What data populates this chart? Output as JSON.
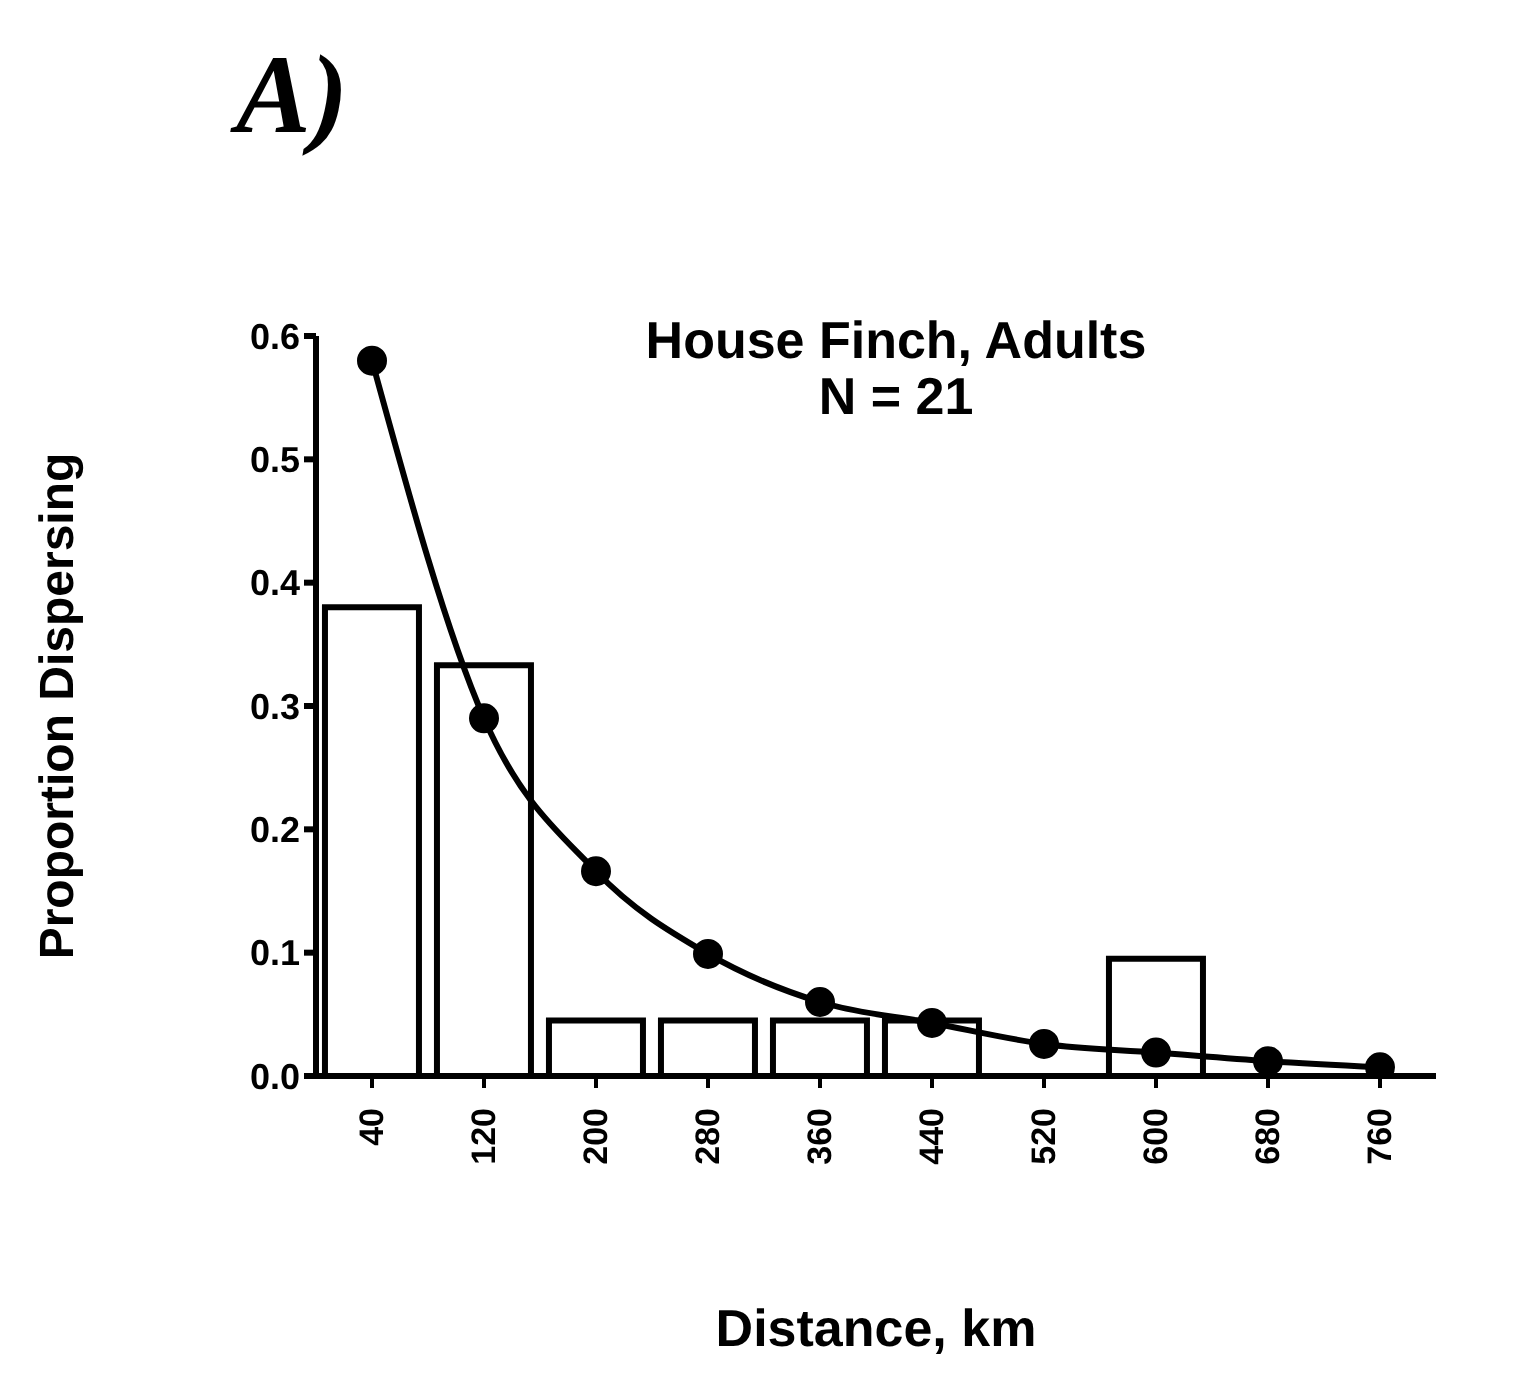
{
  "chart_data": {
    "type": "bar",
    "title": "House Finch, Adults",
    "subtitle": "N = 21",
    "annotations": [
      "A)"
    ],
    "xlabel": "Distance, km",
    "ylabel": "Proportion Dispersing",
    "categories": [
      "40",
      "120",
      "200",
      "280",
      "360",
      "440",
      "520",
      "600",
      "680",
      "760"
    ],
    "series": [
      {
        "color": "#ffffff",
        "values": [
          0.38,
          0.333,
          0.045,
          0.045,
          0.045,
          0.045,
          0,
          0.095,
          0,
          0
        ]
      },
      {
        "type": "line",
        "color": "#000000",
        "marker": "circle",
        "values": [
          0.58,
          0.29,
          0.166,
          0.099,
          0.06,
          0.043,
          0.026,
          0.019,
          0.012,
          0.007
        ]
      }
    ],
    "ylim": [
      0,
      0.6
    ],
    "yticks": [
      {
        "value": 0,
        "label": "0.0"
      },
      0.1,
      0.2,
      0.3,
      0.4,
      0.5,
      0.6
    ],
    "grid": false,
    "legend": false
  }
}
